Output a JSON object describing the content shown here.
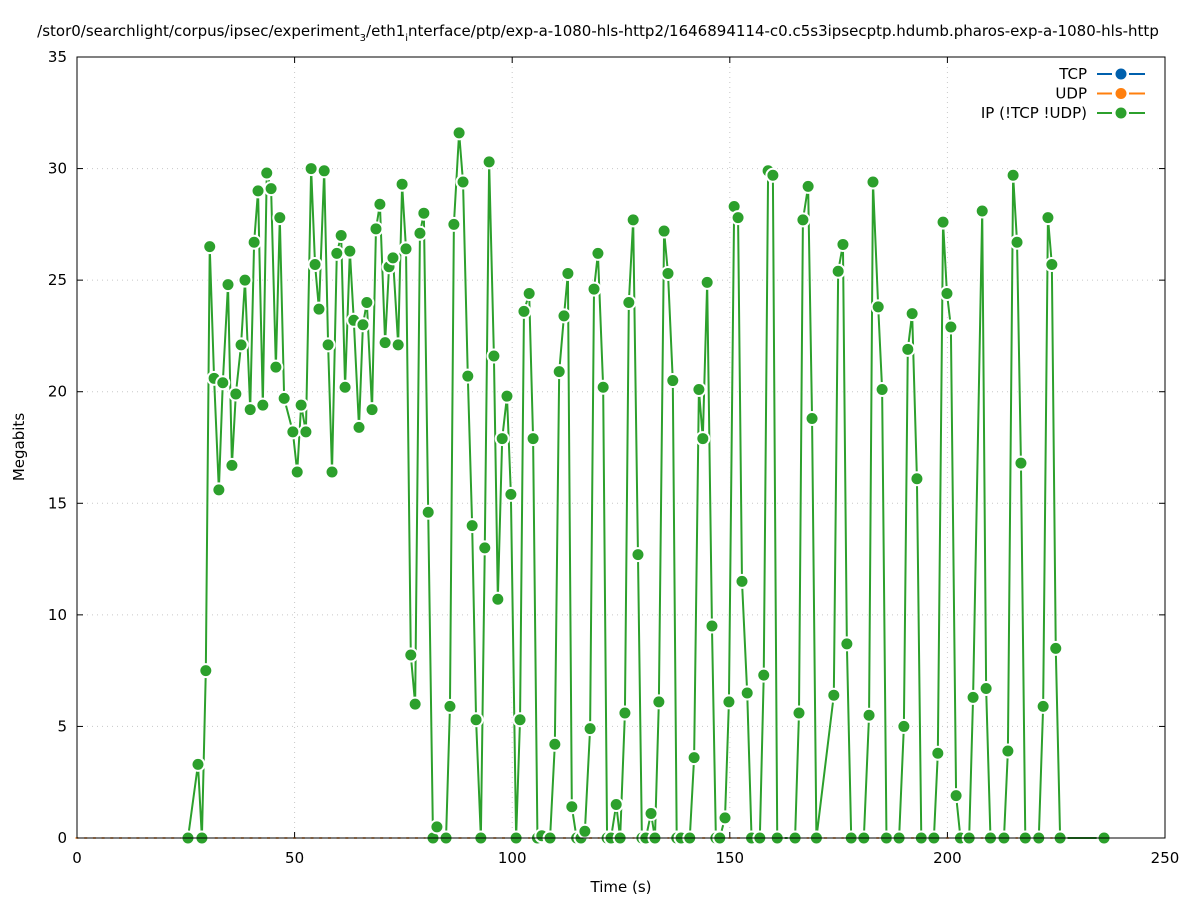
{
  "chart_data": {
    "type": "line",
    "title": "/stor0/searchlight/corpus/ipsec/experiment_3/eth1_interface/ptp/exp-a-1080-hls-http2/1646894114-c0.c5s3ipsecptp.hdumb.pharos-exp-a-1080-hls-http",
    "title_parts": {
      "a": "/stor0/searchlight/corpus/ipsec/experiment",
      "sub1": "3",
      "b": "/eth1",
      "sub2": "i",
      "c": "nterface/ptp/exp-a-1080-hls-http2/1646894114-c0.c5s3ipsecptp.hdumb.pharos-exp-a-1080-hls-http"
    },
    "xlabel": "Time (s)",
    "ylabel": "Megabits",
    "xlim": [
      0,
      250
    ],
    "ylim": [
      0,
      35
    ],
    "xticks": [
      0,
      50,
      100,
      150,
      200,
      250
    ],
    "yticks": [
      0,
      5,
      10,
      15,
      20,
      25,
      30,
      35
    ],
    "grid": true,
    "legend_position": "top-right",
    "series": [
      {
        "name": "TCP",
        "color": "#0060ad",
        "x": [],
        "y": []
      },
      {
        "name": "UDP",
        "color": "#ff7f0e",
        "x": [
          0,
          2,
          4,
          6,
          8,
          10,
          12,
          14,
          16,
          18,
          20,
          22,
          24,
          26,
          28,
          30,
          32,
          34,
          36,
          38,
          40,
          42,
          44,
          46,
          48,
          50,
          52,
          54,
          56,
          58,
          60,
          62,
          64,
          66,
          68,
          70,
          72,
          74,
          76,
          78,
          80,
          82,
          84,
          86,
          88,
          90,
          92,
          94,
          96,
          98,
          100,
          102,
          104,
          106,
          108,
          110,
          112,
          114,
          116,
          118,
          120,
          122,
          124,
          126,
          128,
          130,
          132,
          134,
          136,
          138,
          140,
          142,
          144,
          146,
          148,
          150,
          152,
          154,
          156,
          158,
          160,
          162,
          164,
          166,
          168,
          170,
          172,
          174,
          176,
          178,
          180,
          182,
          184,
          186,
          188,
          190,
          192,
          194,
          196,
          198,
          200,
          202,
          204,
          206,
          208,
          210,
          212,
          214,
          216,
          218,
          220,
          222,
          224,
          226,
          228,
          230
        ],
        "y": [
          0,
          0,
          0,
          0,
          0,
          0,
          0,
          0,
          0,
          0,
          0,
          0,
          0,
          0,
          0,
          0,
          0,
          0,
          0,
          0,
          0,
          0,
          0,
          0,
          0,
          0,
          0,
          0,
          0,
          0,
          0,
          0,
          0,
          0,
          0,
          0,
          0,
          0,
          0,
          0,
          0,
          0,
          0,
          0,
          0,
          0,
          0,
          0,
          0,
          0,
          0,
          0,
          0,
          0,
          0,
          0,
          0,
          0,
          0,
          0,
          0,
          0,
          0,
          0,
          0,
          0,
          0,
          0,
          0,
          0,
          0,
          0,
          0,
          0,
          0,
          0,
          0,
          0,
          0,
          0,
          0,
          0,
          0,
          0,
          0,
          0,
          0,
          0,
          0,
          0,
          0,
          0,
          0,
          0,
          0,
          0,
          0,
          0,
          0,
          0,
          0,
          0,
          0,
          0,
          0,
          0,
          0,
          0,
          0,
          0,
          0,
          0,
          0,
          0,
          0,
          0
        ]
      },
      {
        "name": "IP (!TCP  !UDP)",
        "color": "#2ca02c",
        "x": [
          25.5,
          27.8,
          28.7,
          29.6,
          30.5,
          31.5,
          32.6,
          33.5,
          34.7,
          35.6,
          36.5,
          37.7,
          38.6,
          39.8,
          40.7,
          41.6,
          42.7,
          43.6,
          44.6,
          45.7,
          46.6,
          47.6,
          49.6,
          50.6,
          51.5,
          52.6,
          53.8,
          54.7,
          55.6,
          56.8,
          57.7,
          58.6,
          59.7,
          60.7,
          61.6,
          62.7,
          63.6,
          64.8,
          65.7,
          66.6,
          67.8,
          68.7,
          69.6,
          70.8,
          71.7,
          72.6,
          73.8,
          74.7,
          75.6,
          76.7,
          77.7,
          78.8,
          79.7,
          80.7,
          81.8,
          82.7,
          84.8,
          85.7,
          86.6,
          87.8,
          88.7,
          89.8,
          90.8,
          91.7,
          92.8,
          93.7,
          94.7,
          95.8,
          96.7,
          97.7,
          98.8,
          99.7,
          100.9,
          101.8,
          102.7,
          103.9,
          104.8,
          105.8,
          106.8,
          108.7,
          109.8,
          110.8,
          111.9,
          112.8,
          113.7,
          114.8,
          115.8,
          116.7,
          117.9,
          118.8,
          119.7,
          120.9,
          121.8,
          122.7,
          123.9,
          124.8,
          125.9,
          126.8,
          127.8,
          128.9,
          129.8,
          130.7,
          131.9,
          132.8,
          133.7,
          134.9,
          135.8,
          136.9,
          137.8,
          138.8,
          140.8,
          141.8,
          142.9,
          143.8,
          144.8,
          145.9,
          146.8,
          147.7,
          148.9,
          149.8,
          151.0,
          151.9,
          152.8,
          154.0,
          155.0,
          156.9,
          157.8,
          158.8,
          159.9,
          160.9,
          165.0,
          165.9,
          166.8,
          168.0,
          168.9,
          169.9,
          173.9,
          174.9,
          176.0,
          176.9,
          177.9,
          180.8,
          182.0,
          182.9,
          184.1,
          185.0,
          186.0,
          188.9,
          190.0,
          190.9,
          191.9,
          193.0,
          194.0,
          196.9,
          197.8,
          199.0,
          199.9,
          200.8,
          202.0,
          203.0,
          205.0,
          205.9,
          208.0,
          208.9,
          209.9,
          213.0,
          213.9,
          215.1,
          216.0,
          216.9,
          217.9,
          221.0,
          222.0,
          223.1,
          224.0,
          224.9,
          225.9,
          236.0
        ],
        "y": [
          0,
          3.3,
          0,
          7.5,
          26.5,
          20.6,
          15.6,
          20.4,
          24.8,
          16.7,
          19.9,
          22.1,
          25.0,
          19.2,
          26.7,
          29.0,
          19.4,
          29.8,
          29.1,
          21.1,
          27.8,
          19.7,
          18.2,
          16.4,
          19.4,
          18.2,
          30.0,
          25.7,
          23.7,
          29.9,
          22.1,
          16.4,
          26.2,
          27.0,
          20.2,
          26.3,
          23.2,
          18.4,
          23.0,
          24.0,
          19.2,
          27.3,
          28.4,
          22.2,
          25.6,
          26.0,
          22.1,
          29.3,
          26.4,
          8.2,
          6.0,
          27.1,
          28.0,
          14.6,
          0,
          0.5,
          0,
          5.9,
          27.5,
          31.6,
          29.4,
          20.7,
          14.0,
          5.3,
          0,
          13.0,
          30.3,
          21.6,
          10.7,
          17.9,
          19.8,
          15.4,
          0,
          5.3,
          23.6,
          24.4,
          17.9,
          0,
          0.1,
          0,
          4.2,
          20.9,
          23.4,
          25.3,
          1.4,
          0,
          0,
          0.3,
          4.9,
          24.6,
          26.2,
          20.2,
          0,
          0,
          1.5,
          0,
          5.6,
          24.0,
          27.7,
          12.7,
          0,
          0,
          1.1,
          0,
          6.1,
          27.2,
          25.3,
          20.5,
          0,
          0,
          0,
          3.6,
          20.1,
          17.9,
          24.9,
          9.5,
          0,
          0,
          0.9,
          6.1,
          28.3,
          27.8,
          11.5,
          6.5,
          0,
          0,
          7.3,
          29.9,
          29.7,
          0,
          0,
          5.6,
          27.7,
          29.2,
          18.8,
          0,
          6.4,
          25.4,
          26.6,
          8.7,
          0,
          0,
          5.5,
          29.4,
          23.8,
          20.1,
          0,
          0,
          5.0,
          21.9,
          23.5,
          16.1,
          0,
          0,
          3.8,
          27.6,
          24.4,
          22.9,
          1.9,
          0,
          0,
          6.3,
          28.1,
          6.7,
          0,
          0,
          3.9,
          29.7,
          26.7,
          16.8,
          0,
          0,
          5.9,
          27.8,
          25.7,
          8.5,
          0,
          0
        ]
      }
    ]
  }
}
